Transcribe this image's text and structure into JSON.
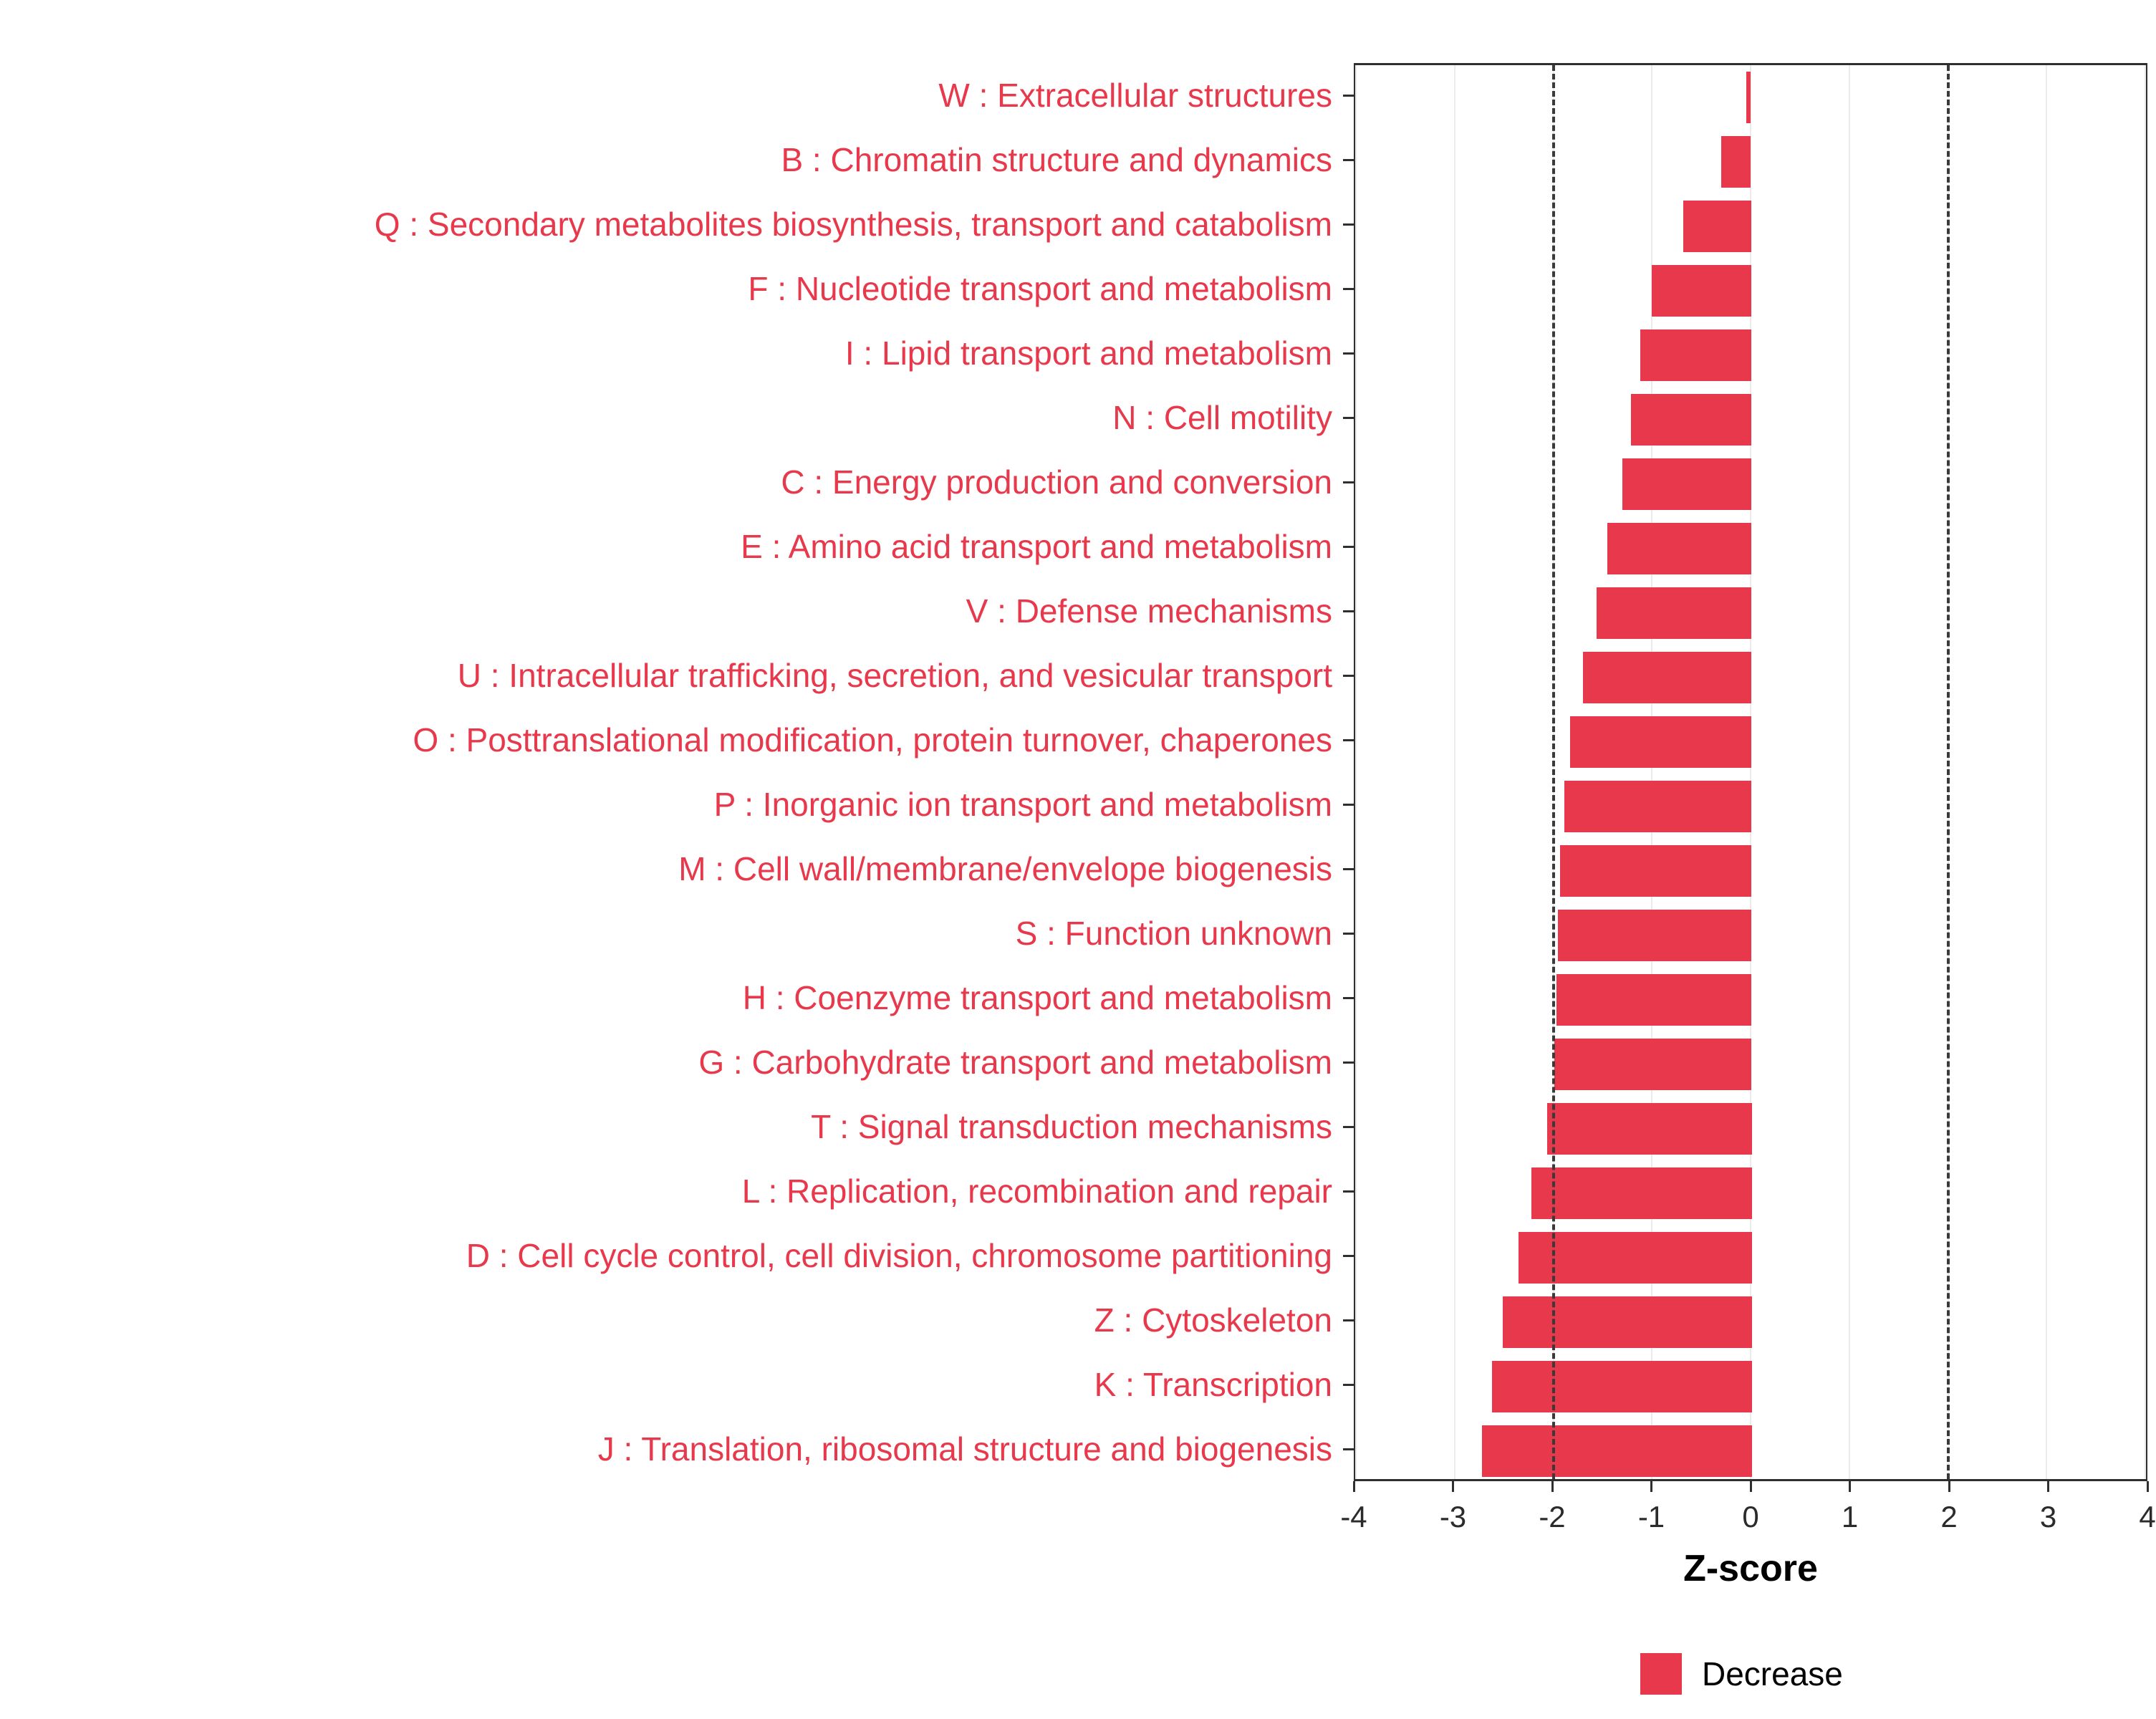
{
  "chart_data": {
    "type": "bar",
    "orientation": "horizontal",
    "title": "",
    "xlabel": "Z-score",
    "ylabel": "",
    "xlim": [
      -4,
      4
    ],
    "xticks": [
      -4,
      -3,
      -2,
      -1,
      0,
      1,
      2,
      3,
      4
    ],
    "threshold_lines": [
      -2,
      2
    ],
    "grid": true,
    "bar_color": "#E8384B",
    "label_color": "#E8384B",
    "legend": [
      {
        "label": "Decrease",
        "color": "#E8384B"
      }
    ],
    "legend_position": "bottom-right",
    "categories": [
      "W : Extracellular structures",
      "B : Chromatin structure and dynamics",
      "Q : Secondary metabolites biosynthesis, transport and catabolism",
      "F : Nucleotide transport and metabolism",
      "I : Lipid transport and metabolism",
      "N : Cell motility",
      "C : Energy production and conversion",
      "E : Amino acid transport and metabolism",
      "V : Defense mechanisms",
      "U : Intracellular trafficking, secretion, and vesicular transport",
      "O : Posttranslational modification, protein turnover, chaperones",
      "P : Inorganic ion transport and metabolism",
      "M : Cell wall/membrane/envelope biogenesis",
      "S : Function unknown",
      "H : Coenzyme transport and metabolism",
      "G : Carbohydrate transport and metabolism",
      "T : Signal transduction mechanisms",
      "L : Replication, recombination and repair",
      "D : Cell cycle control, cell division, chromosome partitioning",
      "Z : Cytoskeleton",
      "K : Transcription",
      "J : Translation, ribosomal structure and biogenesis"
    ],
    "values": [
      -0.04,
      -0.3,
      -0.68,
      -1.0,
      -1.12,
      -1.21,
      -1.3,
      -1.45,
      -1.56,
      -1.7,
      -1.83,
      -1.89,
      -1.93,
      -1.95,
      -1.97,
      -1.99,
      -2.06,
      -2.22,
      -2.35,
      -2.51,
      -2.62,
      -2.72
    ]
  }
}
